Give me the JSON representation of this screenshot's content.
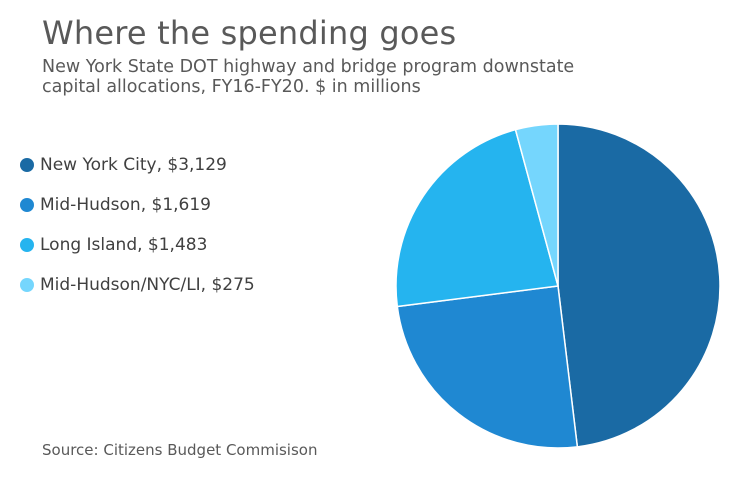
{
  "chart_data": {
    "type": "pie",
    "title": "Where the spending goes",
    "subtitle_lines": [
      "New York State DOT highway and bridge program downstate",
      "capital allocations, FY16-FY20. $ in millions"
    ],
    "slices": [
      {
        "name": "New York City",
        "value": 3129,
        "label": "New York City, $3,129",
        "color": "#1a6aa4"
      },
      {
        "name": "Mid-Hudson",
        "value": 1619,
        "label": "Mid-Hudson, $1,619",
        "color": "#1f88d2"
      },
      {
        "name": "Long Island",
        "value": 1483,
        "label": "Long Island, $1,483",
        "color": "#25b4ef"
      },
      {
        "name": "Mid-Hudson/NYC/LI",
        "value": 275,
        "label": "Mid-Hudson/NYC/LI, $275",
        "color": "#75d6fd"
      }
    ],
    "legend_position": "left",
    "start_angle": "top, clockwise"
  },
  "source": "Source: Citizens Budget Commisison"
}
